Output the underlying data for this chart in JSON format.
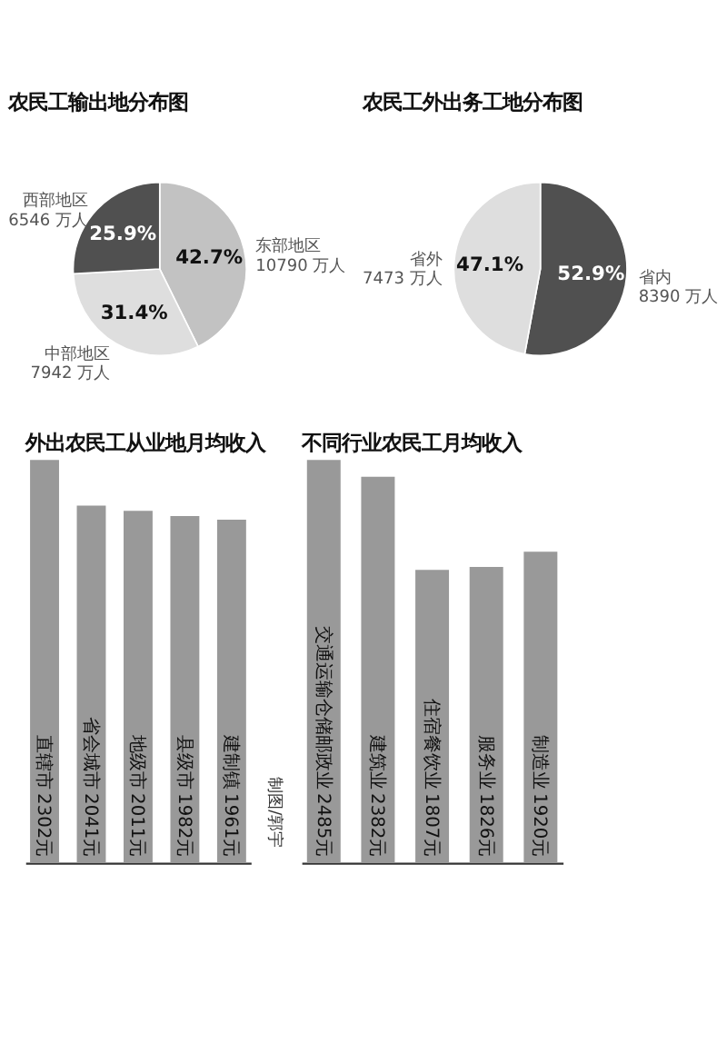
{
  "chart_data": [
    {
      "type": "pie",
      "title": "农民工输出地分布图",
      "categories": [
        "东部地区\n10790 万人",
        "中部地区\n7942 万人",
        "西部地区\n6546 万人"
      ],
      "values": [
        42.7,
        31.4,
        25.9
      ],
      "value_labels": [
        "42.7%",
        "31.4%",
        "25.9%"
      ],
      "colors": [
        "#c2c2c2",
        "#dedede",
        "#505050"
      ]
    },
    {
      "type": "pie",
      "title": "农民工外出务工地分布图",
      "categories": [
        "省内\n8390 万人",
        "省外\n7473 万人"
      ],
      "values": [
        52.9,
        47.1
      ],
      "value_labels": [
        "52.9%",
        "47.1%"
      ],
      "colors": [
        "#505050",
        "#dedede"
      ]
    },
    {
      "type": "bar",
      "title": "外出农民工从业地月均收入",
      "categories": [
        "直辖市",
        "省会城市",
        "地级市",
        "县级市",
        "建制镇"
      ],
      "values": [
        2302,
        2041,
        2011,
        1982,
        1961
      ],
      "value_labels": [
        "2302元",
        "2041元",
        "2011元",
        "1982元",
        "1961元"
      ],
      "color": "#999999",
      "annotations": [
        "制图/郭宇"
      ]
    },
    {
      "type": "bar",
      "title": "不同行业农民工月均收入",
      "categories": [
        "交通运输仓储邮政业",
        "建筑业",
        "住宿餐饮业",
        "服务业",
        "制造业"
      ],
      "values": [
        2485,
        2382,
        1807,
        1826,
        1920
      ],
      "value_labels": [
        "2485元",
        "2382元",
        "1807元",
        "1826元",
        "1920元"
      ],
      "color": "#999999"
    }
  ]
}
